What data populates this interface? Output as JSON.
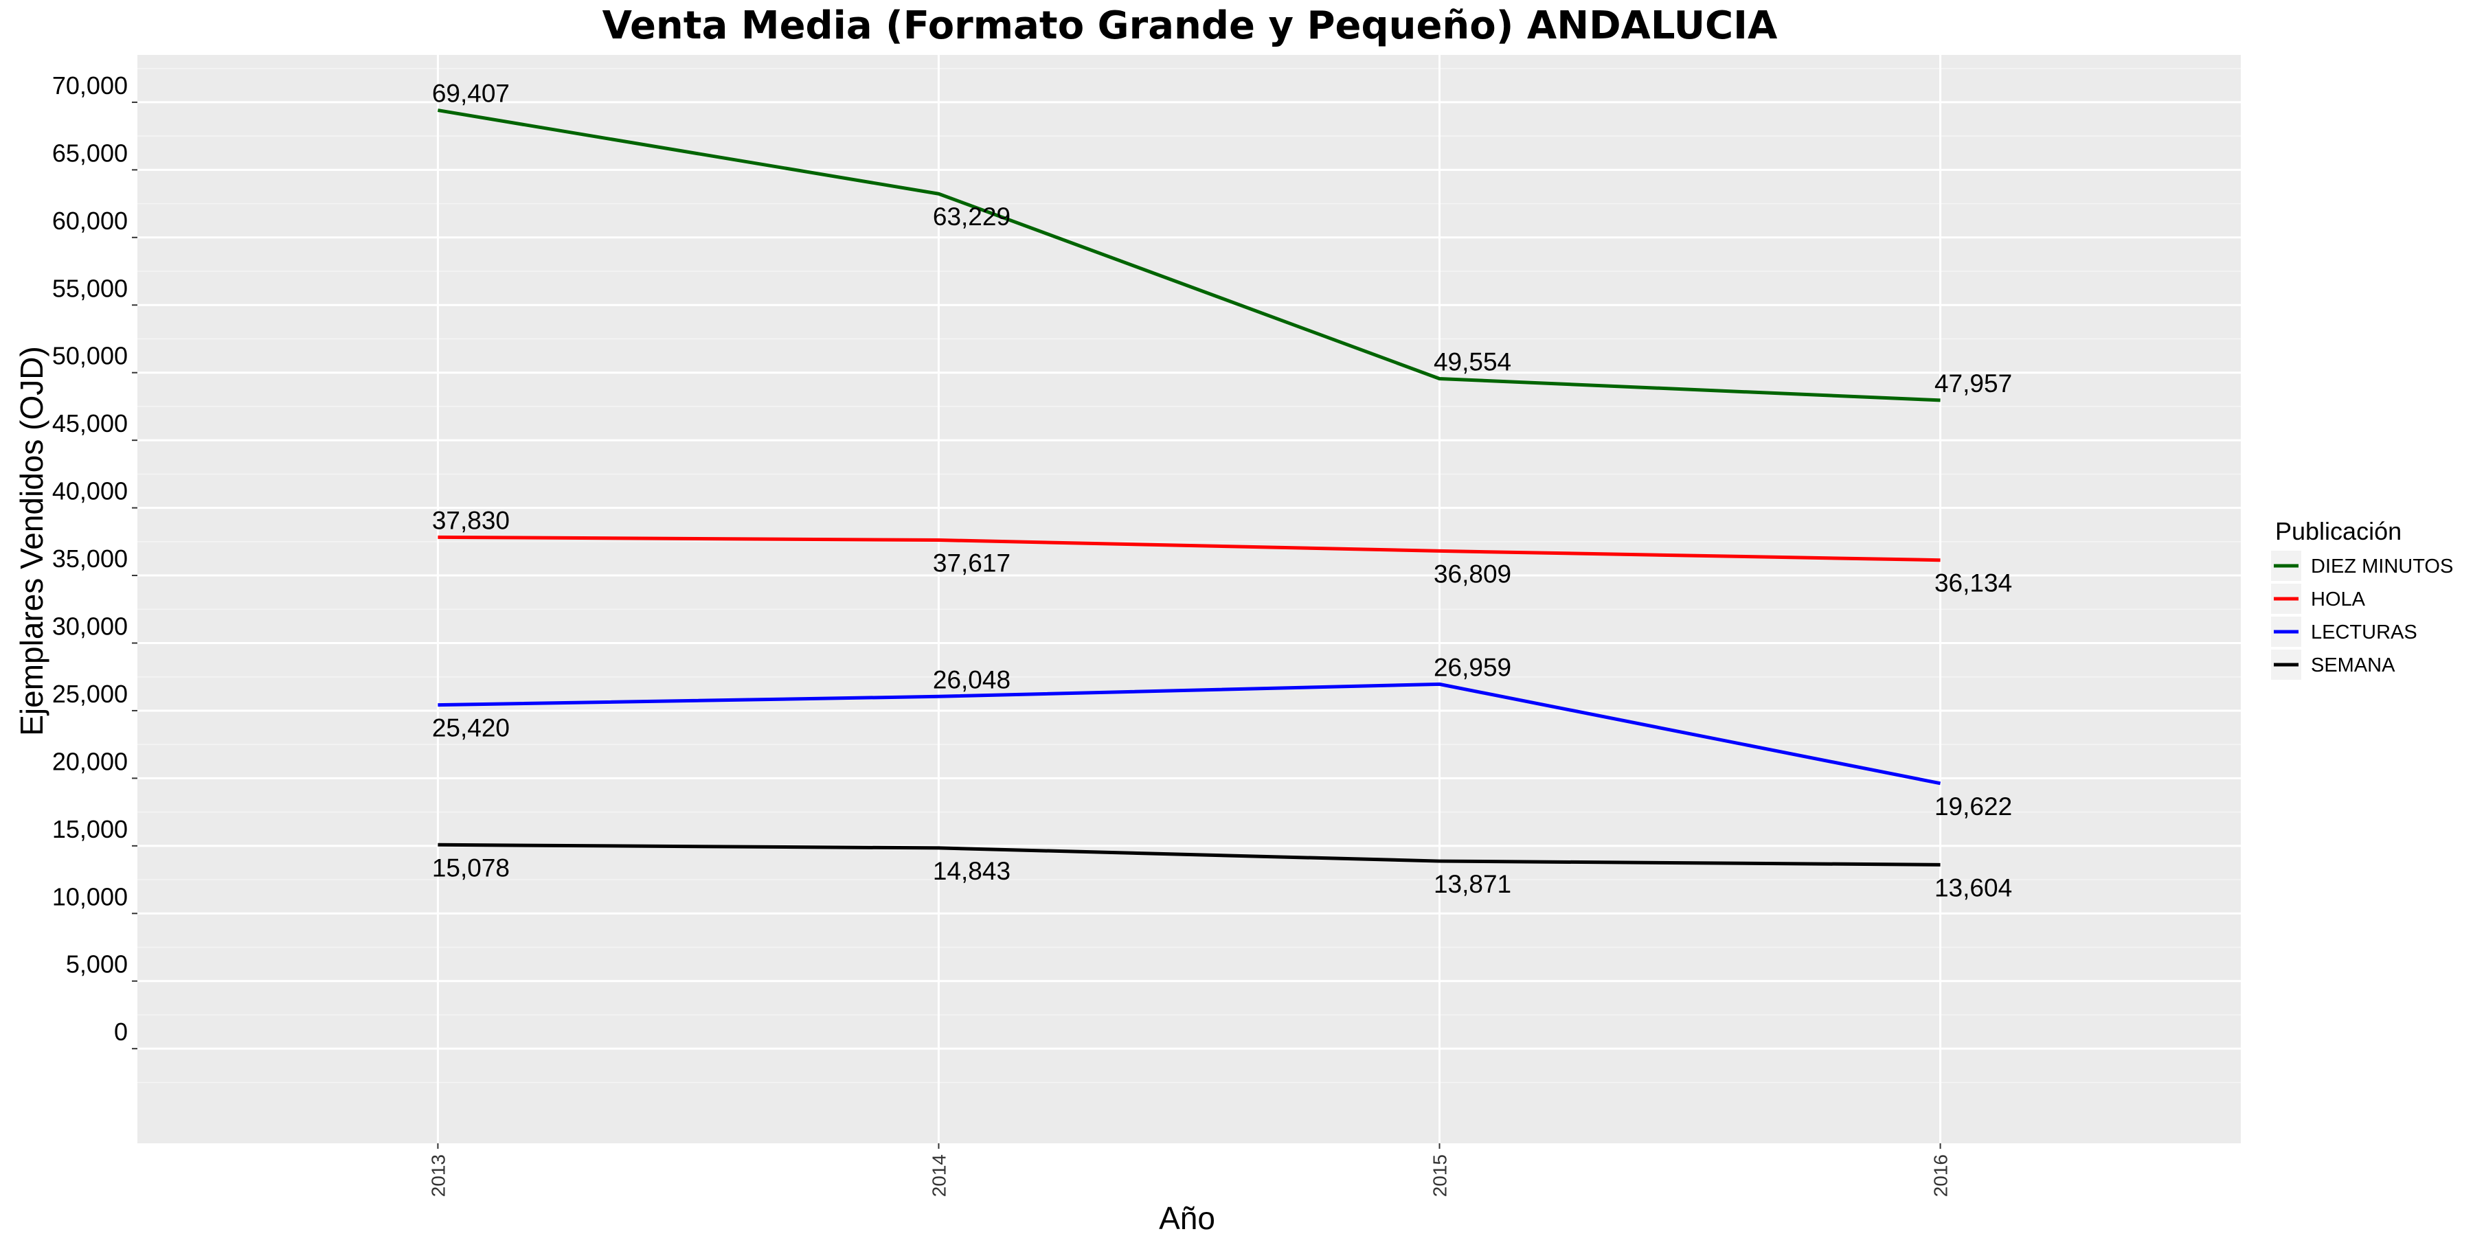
{
  "chart_data": {
    "type": "line",
    "title": "Venta Media (Formato Grande y Pequeño)  ANDALUCIA",
    "xlabel": "Año",
    "ylabel": "Ejemplares Vendidos (OJD)",
    "x": [
      "2013",
      "2014",
      "2015",
      "2016"
    ],
    "xlim": [
      2012.4,
      2016.6
    ],
    "ylim": [
      -7000,
      73500
    ],
    "y_ticks": [
      0,
      5000,
      10000,
      15000,
      20000,
      25000,
      30000,
      35000,
      40000,
      45000,
      50000,
      55000,
      60000,
      65000,
      70000
    ],
    "y_tick_labels": [
      "0",
      "5,000",
      "10,000",
      "15,000",
      "20,000",
      "25,000",
      "30,000",
      "35,000",
      "40,000",
      "45,000",
      "50,000",
      "55,000",
      "60,000",
      "65,000",
      "70,000"
    ],
    "grid": true,
    "legend": {
      "title": "Publicación",
      "position": "right"
    },
    "series": [
      {
        "name": "DIEZ MINUTOS",
        "color": "#006400",
        "values": [
          69407,
          63229,
          49554,
          47957
        ],
        "labels": [
          "69,407",
          "63,229",
          "49,554",
          "47,957"
        ],
        "label_sides": [
          "above",
          "below",
          "above",
          "above"
        ]
      },
      {
        "name": "HOLA",
        "color": "#ff0000",
        "values": [
          37830,
          37617,
          36809,
          36134
        ],
        "labels": [
          "37,830",
          "37,617",
          "36,809",
          "36,134"
        ],
        "label_sides": [
          "above",
          "below",
          "below",
          "below"
        ]
      },
      {
        "name": "LECTURAS",
        "color": "#0000ff",
        "values": [
          25420,
          26048,
          26959,
          19622
        ],
        "labels": [
          "25,420",
          "26,048",
          "26,959",
          "19,622"
        ],
        "label_sides": [
          "below",
          "above",
          "above",
          "below"
        ]
      },
      {
        "name": "SEMANA",
        "color": "#000000",
        "values": [
          15078,
          14843,
          13871,
          13604
        ],
        "labels": [
          "15,078",
          "14,843",
          "13,871",
          "13,604"
        ],
        "label_sides": [
          "below",
          "below",
          "below",
          "below"
        ]
      }
    ]
  }
}
